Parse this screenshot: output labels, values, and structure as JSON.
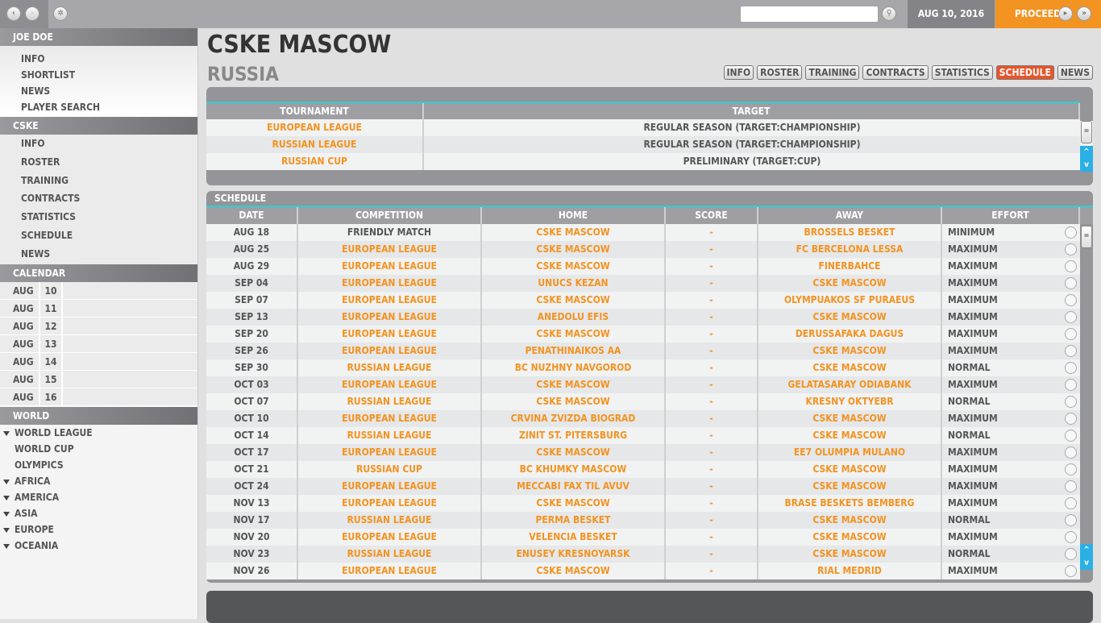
{
  "topbar": {
    "back_icon": "chevron-left",
    "forward_icon": "chevron-right",
    "settings_icon": "gear",
    "search_value": "",
    "search_icon": "magnifier",
    "date": "AUG 10, 2016",
    "proceed": "PROCEED",
    "play_icon": "play",
    "fast_forward_icon": "fast-forward"
  },
  "sidebar": {
    "user": {
      "title": "JOE DOE",
      "items": [
        "INFO",
        "SHORTLIST",
        "NEWS",
        "PLAYER SEARCH"
      ]
    },
    "club": {
      "title": "CSKE",
      "items": [
        "INFO",
        "ROSTER",
        "TRAINING",
        "CONTRACTS",
        "STATISTICS",
        "SCHEDULE",
        "NEWS"
      ]
    },
    "calendar": {
      "title": "CALENDAR",
      "days": [
        [
          "AUG",
          "10"
        ],
        [
          "AUG",
          "11"
        ],
        [
          "AUG",
          "12"
        ],
        [
          "AUG",
          "13"
        ],
        [
          "AUG",
          "14"
        ],
        [
          "AUG",
          "15"
        ],
        [
          "AUG",
          "16"
        ]
      ]
    },
    "world": {
      "title": "WORLD",
      "items": [
        {
          "label": "WORLD LEAGUE",
          "expand": true
        },
        {
          "label": "WORLD CUP",
          "expand": false
        },
        {
          "label": "OLYMPICS",
          "expand": false
        },
        {
          "label": "AFRICA",
          "expand": true
        },
        {
          "label": "AMERICA",
          "expand": true
        },
        {
          "label": "ASIA",
          "expand": true
        },
        {
          "label": "EUROPE",
          "expand": true
        },
        {
          "label": "OCEANIA",
          "expand": true
        }
      ]
    }
  },
  "header": {
    "title": "CSKE MASCOW",
    "country": "RUSSIA"
  },
  "tabs": [
    {
      "label": "INFO"
    },
    {
      "label": "ROSTER"
    },
    {
      "label": "TRAINING"
    },
    {
      "label": "CONTRACTS"
    },
    {
      "label": "STATISTICS"
    },
    {
      "label": "SCHEDULE",
      "active": true
    },
    {
      "label": "NEWS"
    }
  ],
  "targets": {
    "columns": [
      "TOURNAMENT",
      "TARGET"
    ],
    "rows": [
      [
        "EUROPEAN LEAGUE",
        "REGULAR SEASON (TARGET:CHAMPIONSHIP)"
      ],
      [
        "RUSSIAN LEAGUE",
        "REGULAR SEASON  (TARGET:CHAMPIONSHIP)"
      ],
      [
        "RUSSIAN CUP",
        "PRELIMINARY (TARGET:CUP)"
      ]
    ]
  },
  "schedule": {
    "title": "SCHEDULE",
    "columns": [
      "DATE",
      "COMPETITION",
      "HOME",
      "SCORE",
      "AWAY",
      "EFFORT"
    ],
    "rows": [
      [
        "AUG 18",
        "FRIENDLY MATCH",
        "CSKE MASCOW",
        "-",
        "BROSSELS BESKET",
        "MINIMUM"
      ],
      [
        "AUG 25",
        "EUROPEAN LEAGUE",
        "CSKE MASCOW",
        "-",
        "FC BERCELONA LESSA",
        "MAXIMUM"
      ],
      [
        "AUG 29",
        "EUROPEAN LEAGUE",
        "CSKE MASCOW",
        "-",
        "FINERBAHCE",
        "MAXIMUM"
      ],
      [
        "SEP 04",
        "EUROPEAN LEAGUE",
        "UNUCS KEZAN",
        "-",
        "CSKE MASCOW",
        "MAXIMUM"
      ],
      [
        "SEP 07",
        "EUROPEAN LEAGUE",
        "CSKE MASCOW",
        "-",
        "OLYMPUAKOS SF PURAEUS",
        "MAXIMUM"
      ],
      [
        "SEP 13",
        "EUROPEAN LEAGUE",
        "ANEDOLU EFIS",
        "-",
        "CSKE MASCOW",
        "MAXIMUM"
      ],
      [
        "SEP 20",
        "EUROPEAN LEAGUE",
        "CSKE MASCOW",
        "-",
        "DERUSSAFAKA DAGUS",
        "MAXIMUM"
      ],
      [
        "SEP 26",
        "EUROPEAN LEAGUE",
        "PENATHINAIKOS AA",
        "-",
        "CSKE MASCOW",
        "MAXIMUM"
      ],
      [
        "SEP 30",
        "RUSSIAN LEAGUE",
        "BC NUZHNY NAVGOROD",
        "-",
        "CSKE MASCOW",
        "NORMAL"
      ],
      [
        "OCT 03",
        "EUROPEAN LEAGUE",
        "CSKE MASCOW",
        "-",
        "GELATASARAY ODIABANK",
        "MAXIMUM"
      ],
      [
        "OCT 07",
        "RUSSIAN LEAGUE",
        "CSKE MASCOW",
        "-",
        "KRESNY OKTYEBR",
        "NORMAL"
      ],
      [
        "OCT 10",
        "EUROPEAN LEAGUE",
        "CRVINA ZVIZDA BIOGRAD",
        "-",
        "CSKE MASCOW",
        "MAXIMUM"
      ],
      [
        "OCT 14",
        "RUSSIAN LEAGUE",
        "ZINIT ST. PITERSBURG",
        "-",
        "CSKE MASCOW",
        "NORMAL"
      ],
      [
        "OCT 17",
        "EUROPEAN LEAGUE",
        "CSKE MASCOW",
        "-",
        "EE7 OLUMPIA MULANO",
        "MAXIMUM"
      ],
      [
        "OCT 21",
        "RUSSIAN CUP",
        "BC KHUMKY MASCOW",
        "-",
        "CSKE MASCOW",
        "MAXIMUM"
      ],
      [
        "OCT 24",
        "EUROPEAN LEAGUE",
        "MECCABI FAX TIL AVUV",
        "-",
        "CSKE MASCOW",
        "MAXIMUM"
      ],
      [
        "NOV 13",
        "EUROPEAN LEAGUE",
        "CSKE MASCOW",
        "-",
        "BRASE BESKETS BEMBERG",
        "MAXIMUM"
      ],
      [
        "NOV 17",
        "RUSSIAN LEAGUE",
        "PERMA BESKET",
        "-",
        "CSKE MASCOW",
        "NORMAL"
      ],
      [
        "NOV 20",
        "EUROPEAN LEAGUE",
        "VELENCIA BESKET",
        "-",
        "CSKE MASCOW",
        "MAXIMUM"
      ],
      [
        "NOV 23",
        "RUSSIAN LEAGUE",
        "ENUSEY KRESNOYARSK",
        "-",
        "CSKE MASCOW",
        "NORMAL"
      ],
      [
        "NOV 26",
        "EUROPEAN LEAGUE",
        "CSKE MASCOW",
        "-",
        "RIAL MEDRID",
        "MAXIMUM"
      ]
    ]
  },
  "colors": {
    "accent": "#f39321",
    "active_tab": "#e8552a",
    "scroll_arrow": "#2ab0e4",
    "divider": "#2ccfd6"
  }
}
